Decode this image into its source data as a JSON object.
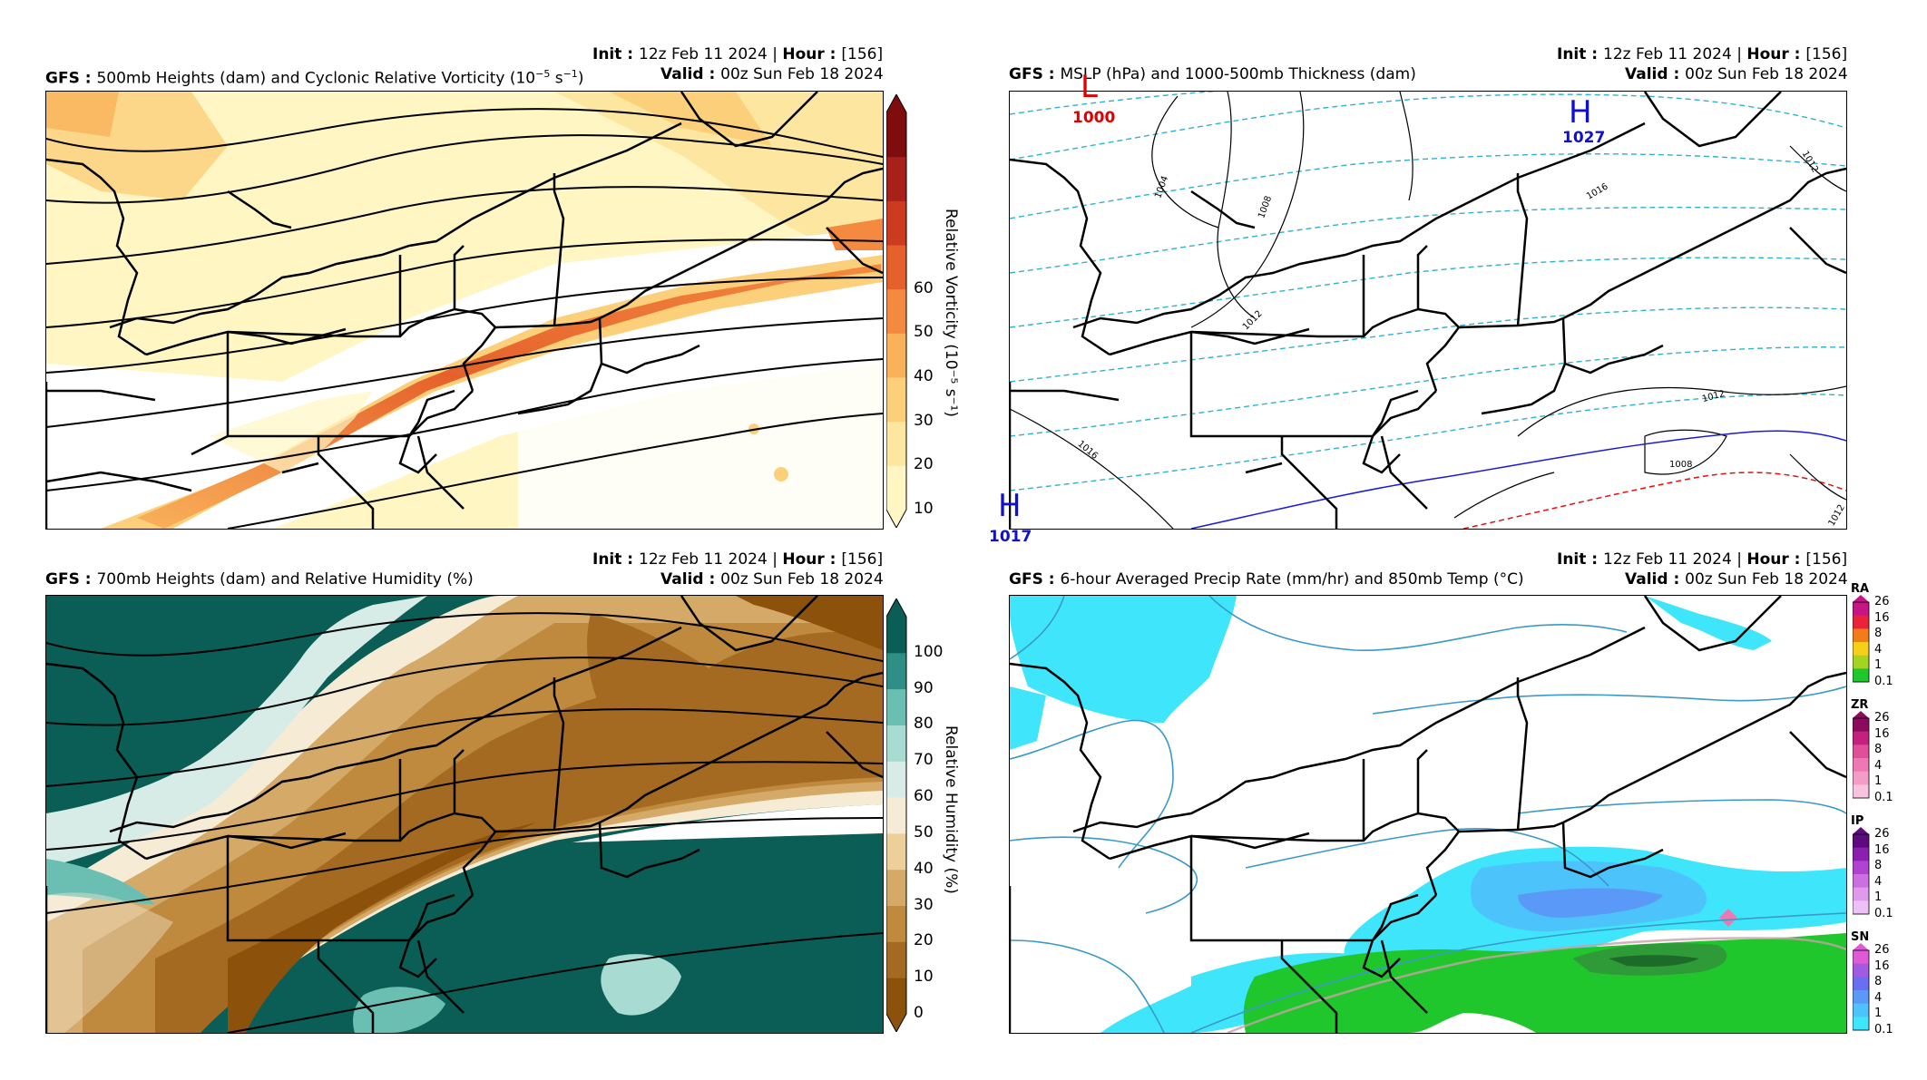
{
  "chart_data": [
    {
      "type": "heatmap",
      "title_label": "GFS",
      "title": "500mb Heights (dam) and Cyclonic Relative Vorticity (10",
      "title_exp": "−5",
      "title_tail": " s",
      "title_exp2": "−1",
      "title_end": ")",
      "init_label": "Init",
      "init_value": "12z Feb 11 2024",
      "hour_label": "Hour",
      "hour_value": "[156]",
      "valid_label": "Valid",
      "valid_value": "00z Sun Feb 18 2024",
      "colorbar_label": "Relative Vorticity (10⁻⁵ s⁻¹)",
      "colorbar_ticks": [
        "10",
        "20",
        "30",
        "40",
        "50",
        "60"
      ],
      "colorbar_colors": [
        "#fff6c4",
        "#fde7a0",
        "#fcd07a",
        "#f9b15a",
        "#f38a3f",
        "#e5612b",
        "#cc3b1f",
        "#a8201a",
        "#7f0d0d"
      ]
    },
    {
      "type": "heatmap",
      "title_label": "GFS",
      "title": "MSLP (hPa) and 1000-500mb Thickness (dam)",
      "init_label": "Init",
      "init_value": "12z Feb 11 2024",
      "hour_label": "Hour",
      "hour_value": "[156]",
      "valid_label": "Valid",
      "valid_value": "00z Sun Feb 18 2024",
      "centers": [
        {
          "symbol": "L",
          "value": "1000",
          "color": "#e00000"
        },
        {
          "symbol": "H",
          "value": "1027",
          "color": "#1010d0"
        },
        {
          "symbol": "H",
          "value": "1017",
          "color": "#1010d0"
        }
      ],
      "isobar_labels": [
        "1004",
        "1008",
        "1012",
        "1016",
        "1012",
        "1016",
        "1008",
        "1012",
        "1012"
      ]
    },
    {
      "type": "heatmap",
      "title_label": "GFS",
      "title": "700mb Heights (dam) and Relative Humidity (%)",
      "init_label": "Init",
      "init_value": "12z Feb 11 2024",
      "hour_label": "Hour",
      "hour_value": "[156]",
      "valid_label": "Valid",
      "valid_value": "00z Sun Feb 18 2024",
      "colorbar_label": "Relative Humidity (%)",
      "colorbar_ticks": [
        "0",
        "10",
        "20",
        "30",
        "40",
        "50",
        "60",
        "70",
        "80",
        "90",
        "100"
      ],
      "colorbar_colors": [
        "#8c510a",
        "#a46a22",
        "#bf8a3e",
        "#d5aa68",
        "#eccf99",
        "#f6ecd6",
        "#d7ece7",
        "#a8dbd1",
        "#6bbfb2",
        "#2f8f86",
        "#0b5e55"
      ]
    },
    {
      "type": "heatmap",
      "title_label": "GFS",
      "title": "6-hour Averaged Precip Rate (mm/hr) and 850mb Temp (°C)",
      "init_label": "Init",
      "init_value": "12z Feb 11 2024",
      "hour_label": "Hour",
      "hour_value": "[156]",
      "valid_label": "Valid",
      "valid_value": "00z Sun Feb 18 2024",
      "precip_bars": [
        {
          "title": "RA",
          "ticks": [
            "26",
            "16",
            "8",
            "4",
            "1",
            "0.1"
          ],
          "colors": [
            "#c71585",
            "#e8233a",
            "#f47b1a",
            "#f5cf18",
            "#a4d41f",
            "#1fc72d"
          ]
        },
        {
          "title": "ZR",
          "ticks": [
            "26",
            "16",
            "8",
            "4",
            "1",
            "0.1"
          ],
          "colors": [
            "#8b0a5e",
            "#c2227d",
            "#e04f99",
            "#ee78b1",
            "#f39cc6",
            "#f8c3dc"
          ]
        },
        {
          "title": "IP",
          "ticks": [
            "26",
            "16",
            "8",
            "4",
            "1",
            "0.1"
          ],
          "colors": [
            "#5d0a7e",
            "#8a1fb0",
            "#b043d0",
            "#cc6fe2",
            "#df9aee",
            "#ecc2f6"
          ]
        },
        {
          "title": "SN",
          "ticks": [
            "26",
            "16",
            "8",
            "4",
            "1",
            "0.1"
          ],
          "colors": [
            "#e05ad8",
            "#a05be0",
            "#6a6ef2",
            "#5a99f7",
            "#4cc3fb",
            "#3fe6fb"
          ]
        }
      ]
    }
  ]
}
